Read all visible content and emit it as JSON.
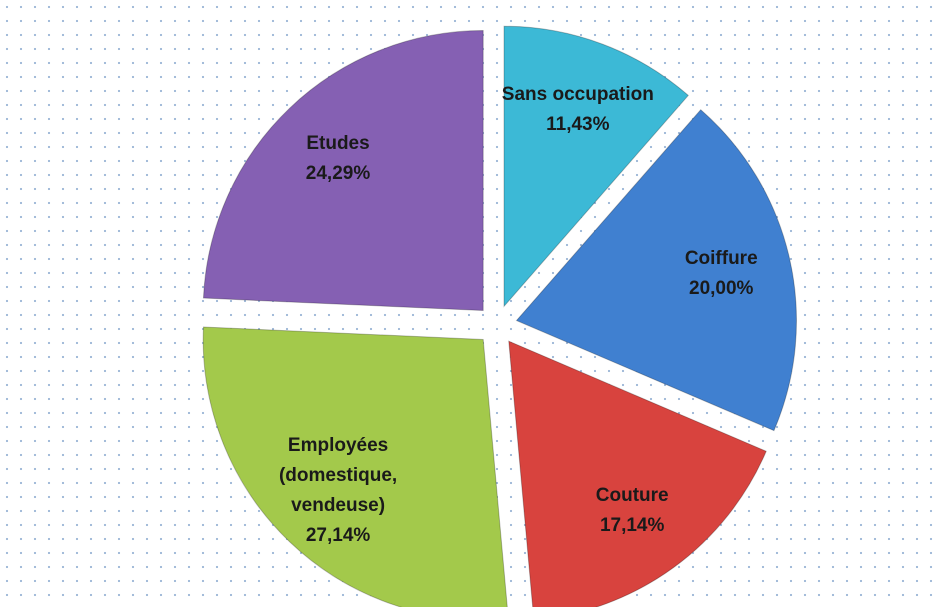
{
  "chart_data": {
    "type": "pie",
    "categories": [
      "Sans occupation",
      "Coiffure",
      "Couture",
      "Employées (domestique, vendeuse)",
      "Etudes"
    ],
    "values": [
      11.43,
      20.0,
      17.14,
      27.14,
      24.29
    ],
    "value_labels": [
      "11,43%",
      "20,00%",
      "17,14%",
      "27,14%",
      "24,29%"
    ],
    "colors": [
      "#3cb9d6",
      "#4080d0",
      "#d8433e",
      "#a3c94b",
      "#8560b3"
    ],
    "exploded": true
  }
}
